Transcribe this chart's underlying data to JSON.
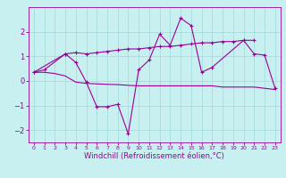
{
  "xlabel": "Windchill (Refroidissement éolien,°C)",
  "background_color": "#c8f0f0",
  "grid_color": "#a0d8d8",
  "line_color": "#990099",
  "x": [
    0,
    1,
    2,
    3,
    4,
    5,
    6,
    7,
    8,
    9,
    10,
    11,
    12,
    13,
    14,
    15,
    16,
    17,
    18,
    19,
    20,
    21,
    22,
    23
  ],
  "series1": [
    0.35,
    0.45,
    null,
    1.1,
    0.75,
    -0.05,
    -1.05,
    -1.05,
    -0.95,
    -2.15,
    0.45,
    0.85,
    1.9,
    1.45,
    2.55,
    2.25,
    0.35,
    0.55,
    null,
    null,
    1.65,
    1.1,
    1.05,
    -0.3
  ],
  "series2": [
    0.35,
    null,
    null,
    1.1,
    1.15,
    1.1,
    1.15,
    1.2,
    1.25,
    1.3,
    1.3,
    1.35,
    1.4,
    1.4,
    1.45,
    1.5,
    1.55,
    1.55,
    1.6,
    1.6,
    1.65,
    1.65,
    null,
    null
  ],
  "series3": [
    0.35,
    0.35,
    0.3,
    0.2,
    -0.05,
    -0.1,
    -0.12,
    -0.14,
    -0.15,
    -0.18,
    -0.2,
    -0.2,
    -0.2,
    -0.2,
    -0.2,
    -0.2,
    -0.2,
    -0.2,
    -0.25,
    -0.25,
    -0.25,
    -0.25,
    -0.3,
    -0.35
  ],
  "ylim": [
    -2.5,
    3.0
  ],
  "xlim": [
    -0.5,
    23.5
  ],
  "yticks": [
    -2,
    -1,
    0,
    1,
    2
  ],
  "xticks": [
    0,
    1,
    2,
    3,
    4,
    5,
    6,
    7,
    8,
    9,
    10,
    11,
    12,
    13,
    14,
    15,
    16,
    17,
    18,
    19,
    20,
    21,
    22,
    23
  ],
  "ylabel_fontsize": 6,
  "xlabel_fontsize": 6,
  "tick_fontsize": 5.5
}
